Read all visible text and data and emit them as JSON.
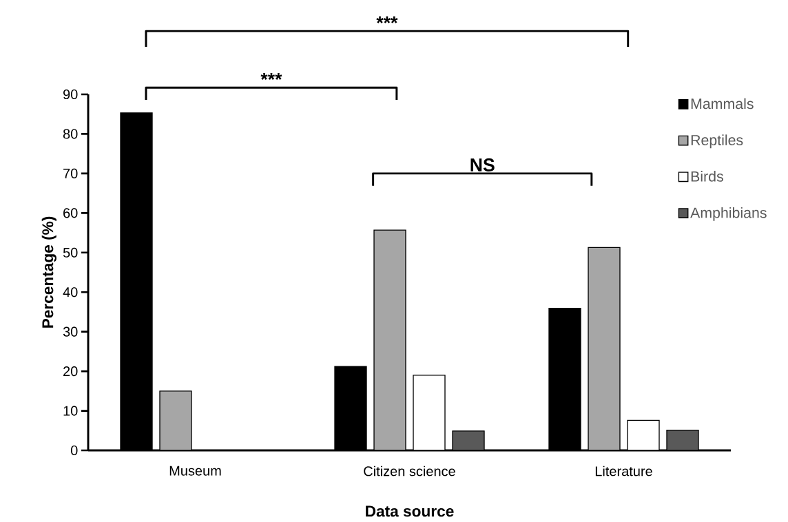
{
  "chart_data": {
    "type": "bar",
    "xlabel": "Data source",
    "ylabel": "Percentage (%)",
    "categories": [
      "Museum",
      "Citizen science",
      "Literature"
    ],
    "series": [
      {
        "name": "Mammals",
        "color": "#000000",
        "values": [
          85.3,
          21.2,
          35.9
        ]
      },
      {
        "name": "Reptiles",
        "color": "#a6a6a6",
        "values": [
          15,
          55.7,
          51.3
        ]
      },
      {
        "name": "Birds",
        "color": "#ffffff",
        "values": [
          null,
          19,
          7.6
        ]
      },
      {
        "name": "Amphibians",
        "color": "#595959",
        "values": [
          null,
          4.9,
          5.1
        ]
      }
    ],
    "ylim": [
      0,
      90
    ],
    "yticks": [
      0,
      10,
      20,
      30,
      40,
      50,
      60,
      70,
      80,
      90
    ],
    "legend": "right",
    "grid": false,
    "annotations": [
      "***",
      "***",
      "NS"
    ]
  }
}
